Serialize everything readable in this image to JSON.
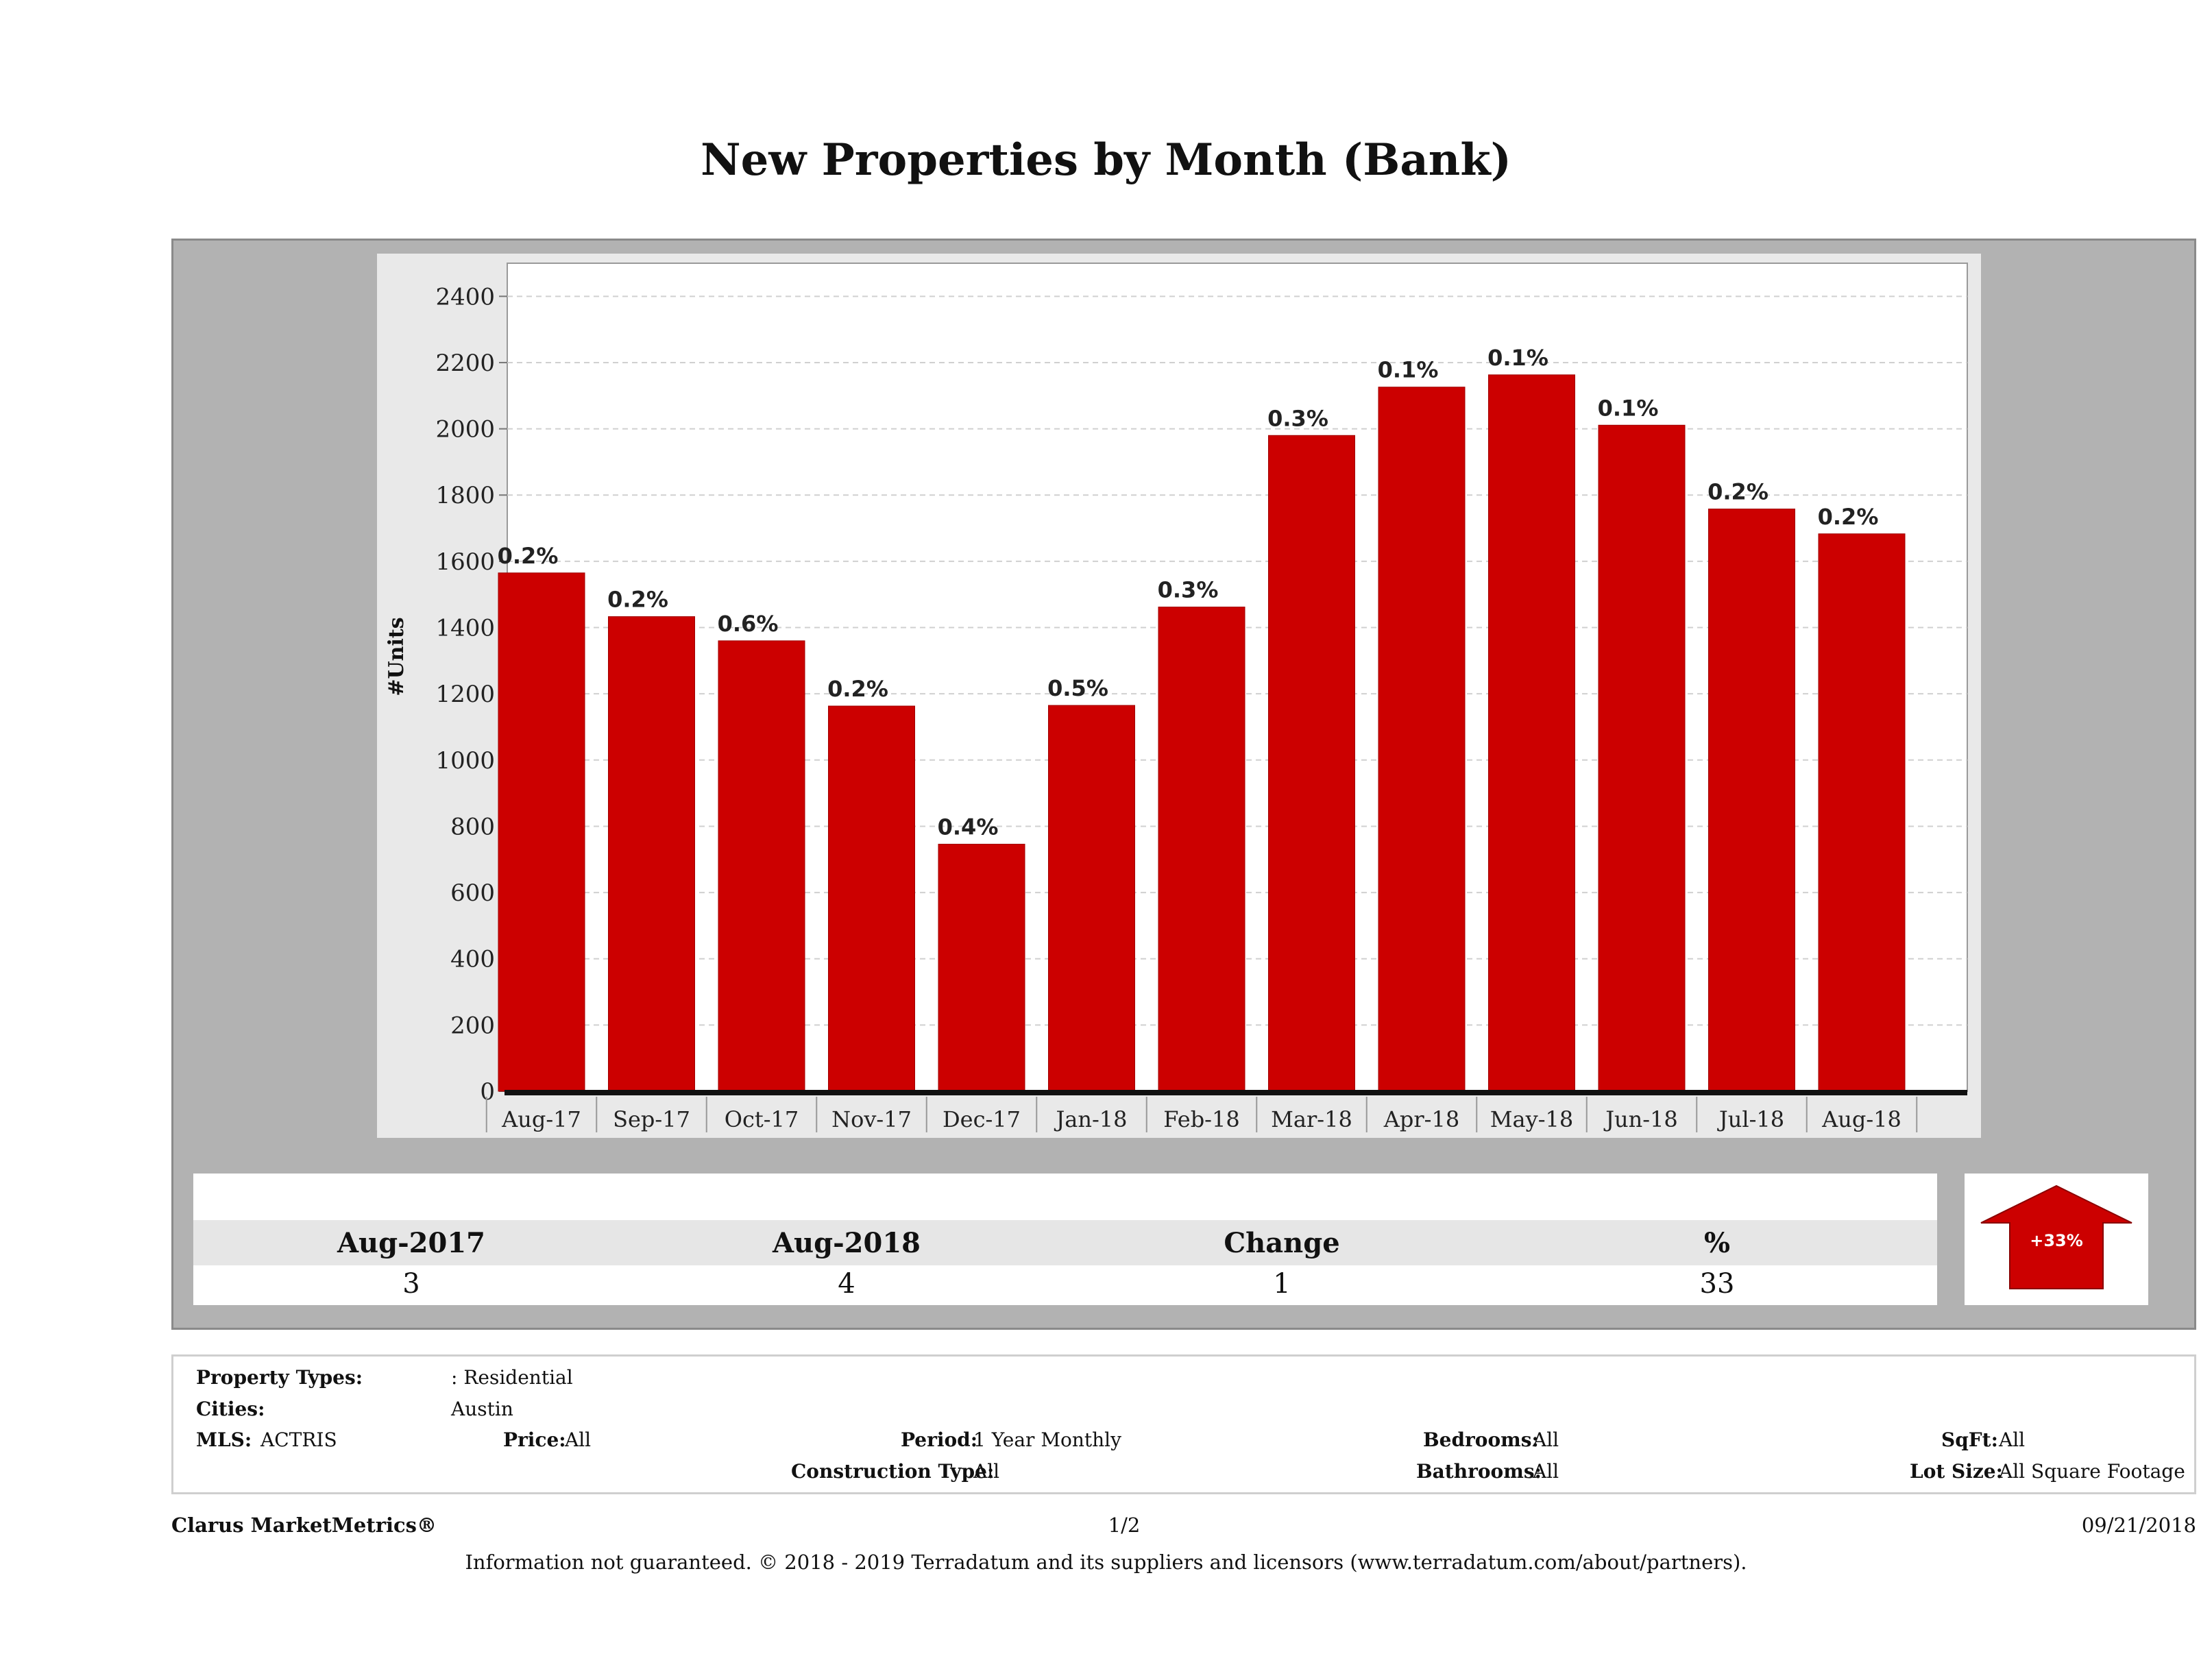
{
  "title": "New Properties by Month (Bank)",
  "colors": {
    "bar": "#cc0000",
    "panel": "#b2b2b2",
    "plot_bg": "#ffffff",
    "arrow": "#cc0000"
  },
  "chart_data": {
    "type": "bar",
    "title": "New Properties by Month (Bank)",
    "xlabel": "",
    "ylabel": "#Units",
    "ylim": [
      0,
      2500
    ],
    "yticks": [
      0,
      200,
      400,
      600,
      800,
      1000,
      1200,
      1400,
      1600,
      1800,
      2000,
      2200,
      2400
    ],
    "grid": true,
    "categories": [
      "Aug-17",
      "Sep-17",
      "Oct-17",
      "Nov-17",
      "Dec-17",
      "Jan-18",
      "Feb-18",
      "Mar-18",
      "Apr-18",
      "May-18",
      "Jun-18",
      "Jul-18",
      "Aug-18"
    ],
    "values": [
      1565,
      1433,
      1360,
      1163,
      746,
      1165,
      1462,
      1980,
      2126,
      2163,
      2011,
      1758,
      1683
    ],
    "data_labels": [
      "0.2%",
      "0.2%",
      "0.6%",
      "0.2%",
      "0.4%",
      "0.5%",
      "0.3%",
      "0.3%",
      "0.1%",
      "0.1%",
      "0.1%",
      "0.2%",
      "0.2%"
    ]
  },
  "summary": {
    "headers": [
      "Aug-2017",
      "Aug-2018",
      "Change",
      "%"
    ],
    "values": [
      "3",
      "4",
      "1",
      "33"
    ],
    "arrow_label": "+33%",
    "arrow_icon": "up-arrow-icon"
  },
  "filters": {
    "property_types_label": "Property Types:",
    "property_types_value": ": Residential",
    "cities_label": "Cities:",
    "cities_value": "Austin",
    "mls_label": "MLS:",
    "mls_value": "ACTRIS",
    "price_label": "Price:",
    "price_value": "All",
    "period_label": "Period:",
    "period_value": "1 Year Monthly",
    "construction_label": "Construction Type:",
    "construction_value": "All",
    "bedrooms_label": "Bedrooms:",
    "bedrooms_value": "All",
    "bathrooms_label": "Bathrooms:",
    "bathrooms_value": "All",
    "sqft_label": "SqFt:",
    "sqft_value": "All",
    "lotsize_label": "Lot Size:",
    "lotsize_value": "All Square Footage"
  },
  "footer": {
    "brand": "Clarus MarketMetrics®",
    "page": "1/2",
    "date": "09/21/2018",
    "disclaimer": "Information not guaranteed. © 2018 - 2019 Terradatum and its suppliers and licensors (www.terradatum.com/about/partners)."
  }
}
